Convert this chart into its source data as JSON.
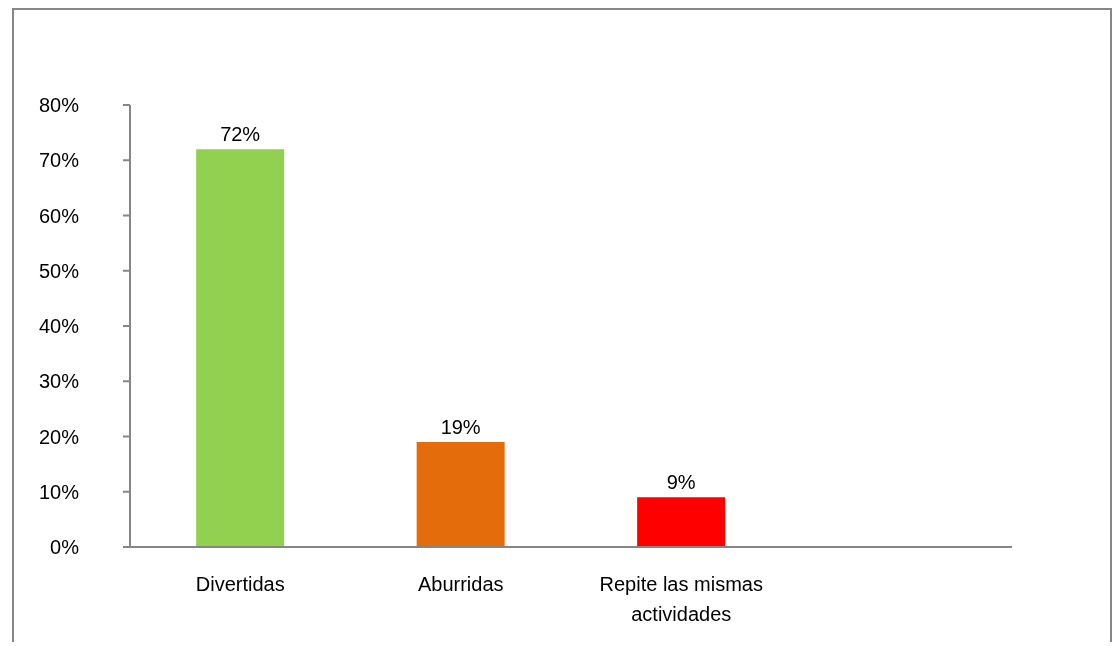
{
  "chart_data": {
    "type": "bar",
    "categories": [
      "Divertidas",
      "Aburridas",
      "Repite las mismas actividades",
      null
    ],
    "values": [
      72,
      19,
      9,
      null
    ],
    "colors": [
      "#92d050",
      "#e46c0a",
      "#ff0000",
      null
    ],
    "value_labels": [
      "72%",
      "19%",
      "9%",
      null
    ],
    "ylim": [
      0,
      80
    ],
    "yticks": [
      {
        "value": 0,
        "label": "0%"
      },
      {
        "value": 10,
        "label": "10%"
      },
      {
        "value": 20,
        "label": "20%"
      },
      {
        "value": 30,
        "label": "30%"
      },
      {
        "value": 40,
        "label": "40%"
      },
      {
        "value": 50,
        "label": "50%"
      },
      {
        "value": 60,
        "label": "60%"
      },
      {
        "value": 70,
        "label": "70%"
      },
      {
        "value": 80,
        "label": "80%"
      }
    ]
  }
}
